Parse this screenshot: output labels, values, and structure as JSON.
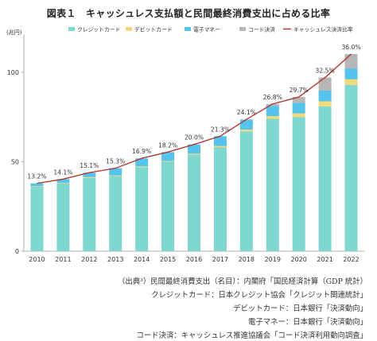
{
  "chart_data": {
    "type": "bar",
    "title": "図表１　キャッシュレス支払額と民間最終消費支出に占める比率",
    "unit_label": "(兆円)",
    "categories": [
      "2010",
      "2011",
      "2012",
      "2013",
      "2014",
      "2015",
      "2016",
      "2017",
      "2018",
      "2019",
      "2020",
      "2021",
      "2022"
    ],
    "ylim": [
      0,
      120
    ],
    "yticks": [
      0,
      50,
      100
    ],
    "stacked": true,
    "series": [
      {
        "name": "クレジットカード",
        "color": "#7fd8d0",
        "values": [
          36,
          38,
          41,
          42,
          47,
          50,
          54,
          58,
          67,
          74,
          75,
          81,
          93
        ]
      },
      {
        "name": "デビットカード",
        "color": "#f3da78",
        "values": [
          0.3,
          0.3,
          0.4,
          0.4,
          0.4,
          0.4,
          0.5,
          0.8,
          1.0,
          1.5,
          2.0,
          2.8,
          3.1
        ]
      },
      {
        "name": "電子マネー",
        "color": "#56c3ec",
        "values": [
          1.6,
          2.0,
          2.5,
          4.0,
          4.5,
          5.0,
          5.2,
          5.5,
          5.5,
          5.8,
          6.0,
          6.0,
          6.1
        ]
      },
      {
        "name": "コード決済",
        "color": "#b6b6b6",
        "values": [
          0,
          0,
          0,
          0,
          0,
          0,
          0,
          0,
          0.2,
          1.0,
          3.2,
          7.3,
          8.0
        ]
      }
    ],
    "ratio_series": {
      "name": "キャッシュレス決済比率",
      "color": "#b03a36",
      "labels": [
        "13.2%",
        "14.1%",
        "15.1%",
        "15.3%",
        "16.9%",
        "18.2%",
        "20.0%",
        "21.3%",
        "24.1%",
        "26.8%",
        "29.7%",
        "32.5%",
        "36.0%"
      ],
      "values_pct": [
        13.2,
        14.1,
        15.1,
        15.3,
        16.9,
        18.2,
        20.0,
        21.3,
        24.1,
        26.8,
        29.7,
        32.5,
        36.0
      ]
    },
    "legend_position": "top",
    "grid": false
  },
  "source_notes": [
    "（出典³）民間最終消費支出（名目）：内閣府「国民経済計算（GDP 統計）",
    "クレジットカード：日本クレジット協会「クレジット関連統計」",
    "デビットカード：日本銀行「決済動向」",
    "電子マネー：日本銀行「決済動向」",
    "コード決済：キャッシュレス推進協議会「コード決済利用動向調査」"
  ]
}
